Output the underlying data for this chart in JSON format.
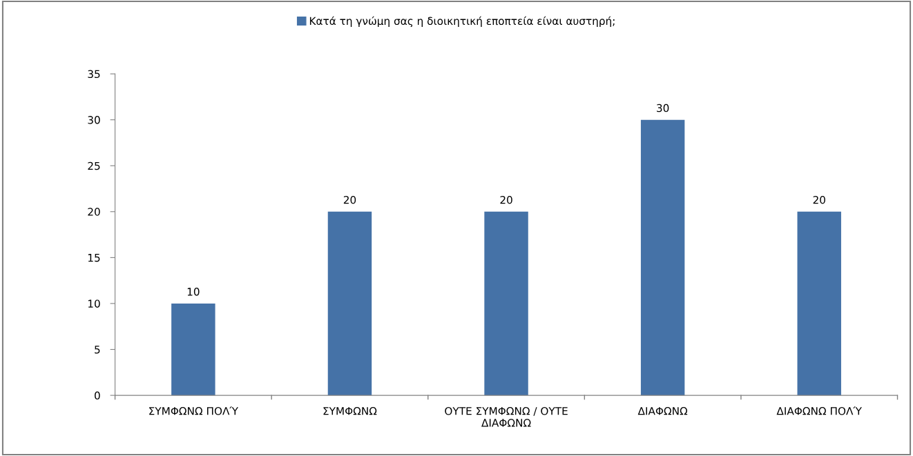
{
  "chart_data": {
    "type": "bar",
    "categories": [
      "ΣΥΜΦΩΝΩ ΠΟΛΎ",
      "ΣΥΜΦΩΝΩ",
      "ΟΥΤΕ ΣΥΜΦΩΝΩ / ΟΥΤΕ\nΔΙΑΦΩΝΩ",
      "ΔΙΑΦΩΝΩ",
      "ΔΙΑΦΩΝΩ ΠΟΛΎ"
    ],
    "series": [
      {
        "name": "Κατά τη γνώμη σας η διοικητική εποπτεία είναι αυστηρή;",
        "color": "#4572a7",
        "values": [
          10,
          20,
          20,
          30,
          20
        ]
      }
    ],
    "ylim": [
      0,
      35
    ],
    "yticks": [
      0,
      5,
      10,
      15,
      20,
      25,
      30,
      35
    ],
    "data_labels": true,
    "legend": "top",
    "grid": false
  }
}
